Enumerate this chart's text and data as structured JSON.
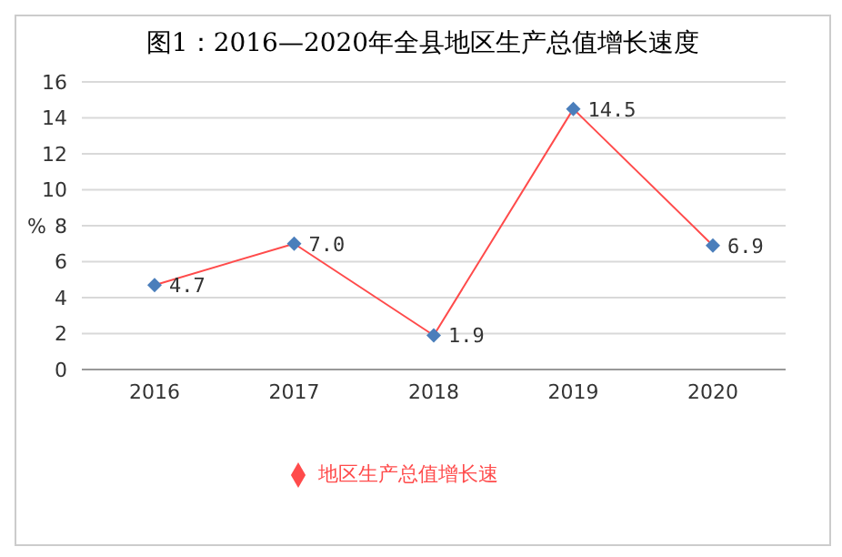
{
  "chart_data": {
    "type": "line",
    "title": "图1：2016—2020年全县地区生产总值增长速度",
    "ylabel": "%",
    "categories": [
      "2016",
      "2017",
      "2018",
      "2019",
      "2020"
    ],
    "series": [
      {
        "name": "地区生产总值增长速",
        "color": "#ff4b4b",
        "values": [
          4.7,
          7.0,
          1.9,
          14.5,
          6.9
        ],
        "value_labels": [
          "4.7",
          "7.0",
          "1.9",
          "14.5",
          "6.9"
        ]
      }
    ],
    "ylim": [
      0,
      16
    ],
    "yticks": [
      0,
      2,
      4,
      6,
      8,
      10,
      12,
      14,
      16
    ],
    "grid": "y",
    "legend": "bottom",
    "marker": "diamond"
  }
}
